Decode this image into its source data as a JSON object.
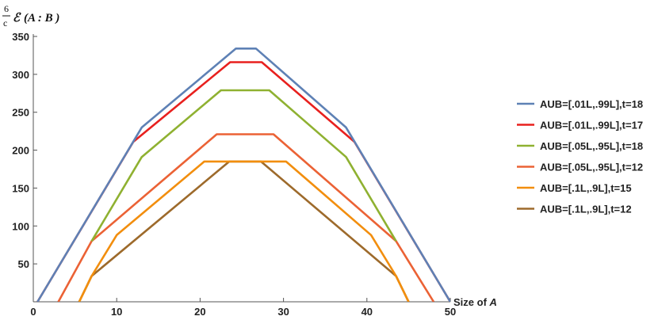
{
  "chart_data": {
    "type": "line",
    "ylabel": {
      "frac_num": "6",
      "frac_den": "c",
      "symbol": "ℰ",
      "text": "(A  : B )"
    },
    "xlabel": {
      "prefix": "Size of ",
      "var": "A"
    },
    "xlim": [
      0,
      50
    ],
    "ylim": [
      0,
      350
    ],
    "x_ticks": [
      0,
      10,
      20,
      30,
      40,
      50
    ],
    "y_ticks": [
      50,
      100,
      150,
      200,
      250,
      300,
      350
    ],
    "grid": false,
    "legend_position": "right",
    "series": [
      {
        "name": "AUB=[.01L,.99L],t=18",
        "color": "#5e81b5",
        "points": [
          [
            0.5,
            0
          ],
          [
            13,
            230
          ],
          [
            24.3,
            334
          ],
          [
            26.7,
            334
          ],
          [
            37.5,
            230
          ],
          [
            50,
            0
          ]
        ]
      },
      {
        "name": "AUB=[.01L,.99L],t=17",
        "color": "#e8201e",
        "points": [
          [
            0.5,
            0
          ],
          [
            12,
            211
          ],
          [
            23.6,
            316
          ],
          [
            27.4,
            316
          ],
          [
            38.5,
            211
          ],
          [
            50,
            0
          ]
        ]
      },
      {
        "name": "AUB=[.05L,.95L],t=18",
        "color": "#8fb131",
        "points": [
          [
            7,
            80
          ],
          [
            13,
            191
          ],
          [
            22.5,
            279
          ],
          [
            28.3,
            279
          ],
          [
            37.5,
            191
          ],
          [
            43.5,
            80
          ]
        ]
      },
      {
        "name": "AUB=[.05L,.95L],t=12",
        "color": "#eb6235",
        "points": [
          [
            3,
            0
          ],
          [
            7,
            80
          ],
          [
            22,
            221
          ],
          [
            28.8,
            221
          ],
          [
            43.5,
            80
          ],
          [
            48,
            0
          ]
        ]
      },
      {
        "name": "AUB=[.1L,.9L],t=15",
        "color": "#f28e0e",
        "points": [
          [
            5.5,
            0
          ],
          [
            7,
            34
          ],
          [
            10,
            88
          ],
          [
            20.5,
            185
          ],
          [
            30.3,
            185
          ],
          [
            40.5,
            88
          ],
          [
            43.5,
            34
          ],
          [
            45,
            0
          ]
        ]
      },
      {
        "name": "AUB=[.1L,.9L],t=12",
        "color": "#9d6a2b",
        "points": [
          [
            5.5,
            0
          ],
          [
            7,
            34
          ],
          [
            23.5,
            185
          ],
          [
            27.3,
            185
          ],
          [
            43.5,
            34
          ],
          [
            45,
            0
          ]
        ]
      }
    ]
  }
}
